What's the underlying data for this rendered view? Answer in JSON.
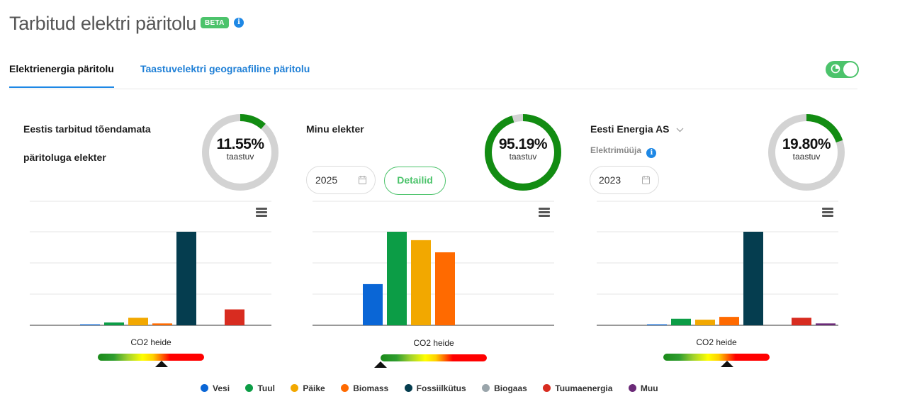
{
  "page": {
    "title": "Tarbitud elektri päritolu",
    "beta_label": "BETA",
    "info_glyph": "i"
  },
  "tabs": [
    {
      "label": "Elektrienergia päritolu",
      "active": true
    },
    {
      "label": "Taastuvelektri geograafiline päritolu",
      "active": false
    }
  ],
  "panels": [
    {
      "title_line1": "Eestis tarbitud tõendamata",
      "title_line2": "päritoluga elekter",
      "donut": {
        "percent_text": "11.55%",
        "percent": 11.55,
        "label": "taastuv"
      },
      "co2": {
        "label": "CO2 heide",
        "position": 0.6
      }
    },
    {
      "title": "Minu elekter",
      "year": "2025",
      "details_button": "Detailid",
      "donut": {
        "percent_text": "95.19%",
        "percent": 95.19,
        "label": "taastuv"
      },
      "co2": {
        "label": "CO2 heide",
        "position": 0.0
      }
    },
    {
      "title": "Eesti Energia AS",
      "subtitle": "Elektrimüüja",
      "year": "2023",
      "donut": {
        "percent_text": "19.80%",
        "percent": 19.8,
        "label": "taastuv"
      },
      "co2": {
        "label": "CO2 heide",
        "position": 0.6
      }
    }
  ],
  "legend": [
    {
      "label": "Vesi",
      "color": "#0a66d6"
    },
    {
      "label": "Tuul",
      "color": "#0c9d46"
    },
    {
      "label": "Päike",
      "color": "#f2a800"
    },
    {
      "label": "Biomass",
      "color": "#ff6a00"
    },
    {
      "label": "Fossiilkütus",
      "color": "#053d4f"
    },
    {
      "label": "Biogaas",
      "color": "#9aa5ab"
    },
    {
      "label": "Tuumaenergia",
      "color": "#d82c20"
    },
    {
      "label": "Muu",
      "color": "#6b2a78"
    }
  ],
  "chart_data": [
    {
      "type": "bar",
      "title": "Eestis tarbitud tõendamata päritoluga elekter",
      "categories": [
        "Vesi",
        "Tuul",
        "Päike",
        "Biomass",
        "Fossiilkütus",
        "Biogaas",
        "Tuumaenergia",
        "Muu"
      ],
      "values": [
        1,
        3,
        8,
        2,
        100,
        0,
        17,
        0
      ],
      "ylim": [
        0,
        100
      ]
    },
    {
      "type": "bar",
      "title": "Minu elekter",
      "categories": [
        "Vesi",
        "Tuul",
        "Päike",
        "Biomass",
        "Fossiilkütus",
        "Biogaas",
        "Tuumaenergia",
        "Muu"
      ],
      "values": [
        44,
        100,
        91,
        78,
        0,
        0,
        0,
        0
      ],
      "ylim": [
        0,
        100
      ]
    },
    {
      "type": "bar",
      "title": "Eesti Energia AS",
      "categories": [
        "Vesi",
        "Tuul",
        "Päike",
        "Biomass",
        "Fossiilkütus",
        "Biogaas",
        "Tuumaenergia",
        "Muu"
      ],
      "values": [
        1,
        7,
        6,
        9,
        100,
        0,
        8,
        2
      ],
      "ylim": [
        0,
        100
      ]
    }
  ]
}
